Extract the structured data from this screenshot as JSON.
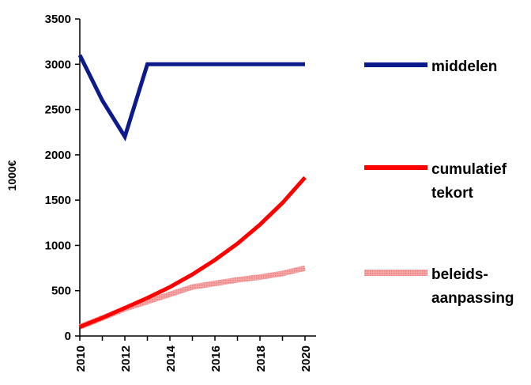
{
  "chart_data": {
    "type": "line",
    "title": "",
    "xlabel": "",
    "ylabel": "1000€",
    "x": [
      2010,
      2011,
      2012,
      2013,
      2014,
      2015,
      2016,
      2017,
      2018,
      2019,
      2020
    ],
    "xticks": [
      "2010",
      "2012",
      "2014",
      "2016",
      "2018",
      "2020"
    ],
    "xlim": [
      2010,
      2020
    ],
    "yticks": [
      "0",
      "500",
      "1000",
      "1500",
      "2000",
      "2500",
      "3000",
      "3500"
    ],
    "ylim": [
      0,
      3500
    ],
    "grid": false,
    "legend_position": "right",
    "series": [
      {
        "name": "middelen",
        "legend_lines": [
          "middelen"
        ],
        "color": "#0d1a8c",
        "x": [
          2010,
          2011,
          2012,
          2013,
          2014,
          2015,
          2016,
          2017,
          2018,
          2019,
          2020
        ],
        "values": [
          3100,
          2600,
          2200,
          3000,
          3000,
          3000,
          3000,
          3000,
          3000,
          3000,
          3000
        ]
      },
      {
        "name": "cumulatief tekort",
        "legend_lines": [
          "cumulatief",
          "tekort"
        ],
        "color": "#ff0000",
        "x": [
          2010,
          2011,
          2012,
          2013,
          2014,
          2015,
          2016,
          2017,
          2018,
          2019,
          2020
        ],
        "values": [
          100,
          200,
          310,
          420,
          540,
          680,
          840,
          1020,
          1230,
          1470,
          1750
        ]
      },
      {
        "name": "beleids- aanpassing",
        "legend_lines": [
          "beleids-",
          "aanpassing"
        ],
        "color": "#f08f8f",
        "x": [
          2010,
          2011,
          2012,
          2013,
          2014,
          2015,
          2016,
          2017,
          2018,
          2019,
          2020
        ],
        "values": [
          100,
          200,
          300,
          380,
          460,
          540,
          580,
          620,
          650,
          690,
          750
        ]
      }
    ]
  }
}
